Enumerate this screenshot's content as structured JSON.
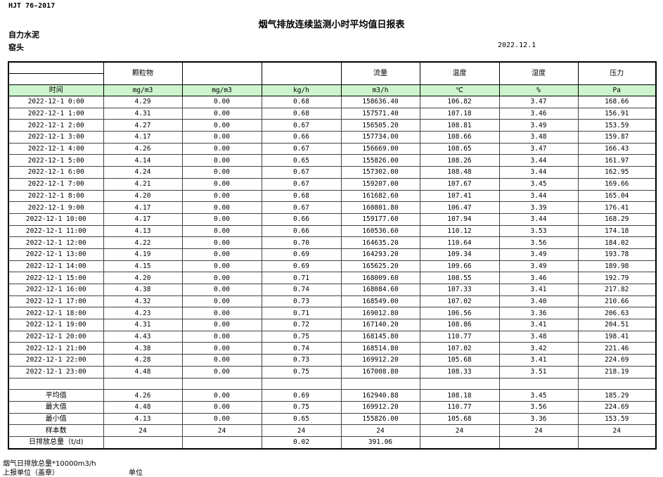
{
  "header": {
    "standard": "HJT  76-2017",
    "title": "烟气排放连续监测小时平均值日报表",
    "company": "自力水泥",
    "unit": "窑头",
    "date": "2022.12.1"
  },
  "columns": [
    "",
    "颗粒物",
    "",
    "",
    "流量",
    "温度",
    "湿度",
    "压力"
  ],
  "units": [
    "时间",
    "mg/m3",
    "mg/m3",
    "kg/h",
    "m3/h",
    "℃",
    "%",
    "Pa"
  ],
  "rows": [
    [
      "2022-12-1 0:00",
      "4.29",
      "0.00",
      "0.68",
      "158636.40",
      "106.82",
      "3.47",
      "168.66"
    ],
    [
      "2022-12-1 1:00",
      "4.31",
      "0.00",
      "0.68",
      "157571.40",
      "107.18",
      "3.46",
      "156.91"
    ],
    [
      "2022-12-1 2:00",
      "4.27",
      "0.00",
      "0.67",
      "156505.20",
      "108.81",
      "3.49",
      "153.59"
    ],
    [
      "2022-12-1 3:00",
      "4.17",
      "0.00",
      "0.66",
      "157734.00",
      "108.66",
      "3.48",
      "159.87"
    ],
    [
      "2022-12-1 4:00",
      "4.26",
      "0.00",
      "0.67",
      "156669.00",
      "108.65",
      "3.47",
      "166.43"
    ],
    [
      "2022-12-1 5:00",
      "4.14",
      "0.00",
      "0.65",
      "155826.00",
      "108.26",
      "3.44",
      "161.97"
    ],
    [
      "2022-12-1 6:00",
      "4.24",
      "0.00",
      "0.67",
      "157302.00",
      "108.48",
      "3.44",
      "162.95"
    ],
    [
      "2022-12-1 7:00",
      "4.21",
      "0.00",
      "0.67",
      "159207.00",
      "107.67",
      "3.45",
      "169.66"
    ],
    [
      "2022-12-1 8:00",
      "4.20",
      "0.00",
      "0.68",
      "161682.60",
      "107.41",
      "3.44",
      "165.04"
    ],
    [
      "2022-12-1 9:00",
      "4.17",
      "0.00",
      "0.67",
      "160801.80",
      "106.47",
      "3.39",
      "176.41"
    ],
    [
      "2022-12-1 10:00",
      "4.17",
      "0.00",
      "0.66",
      "159177.60",
      "107.94",
      "3.44",
      "168.29"
    ],
    [
      "2022-12-1 11:00",
      "4.13",
      "0.00",
      "0.66",
      "160536.60",
      "110.12",
      "3.53",
      "174.18"
    ],
    [
      "2022-12-1 12:00",
      "4.22",
      "0.00",
      "0.70",
      "164635.20",
      "110.64",
      "3.56",
      "184.02"
    ],
    [
      "2022-12-1 13:00",
      "4.19",
      "0.00",
      "0.69",
      "164293.20",
      "109.34",
      "3.49",
      "193.78"
    ],
    [
      "2022-12-1 14:00",
      "4.15",
      "0.00",
      "0.69",
      "165625.20",
      "109.66",
      "3.49",
      "189.98"
    ],
    [
      "2022-12-1 15:00",
      "4.20",
      "0.00",
      "0.71",
      "168009.60",
      "108.55",
      "3.46",
      "192.79"
    ],
    [
      "2022-12-1 16:00",
      "4.38",
      "0.00",
      "0.74",
      "168084.60",
      "107.33",
      "3.41",
      "217.82"
    ],
    [
      "2022-12-1 17:00",
      "4.32",
      "0.00",
      "0.73",
      "168549.00",
      "107.02",
      "3.40",
      "210.66"
    ],
    [
      "2022-12-1 18:00",
      "4.23",
      "0.00",
      "0.71",
      "169012.80",
      "106.56",
      "3.36",
      "206.63"
    ],
    [
      "2022-12-1 19:00",
      "4.31",
      "0.00",
      "0.72",
      "167140.20",
      "108.86",
      "3.41",
      "204.51"
    ],
    [
      "2022-12-1 20:00",
      "4.43",
      "0.00",
      "0.75",
      "168145.80",
      "110.77",
      "3.48",
      "198.41"
    ],
    [
      "2022-12-1 21:00",
      "4.38",
      "0.00",
      "0.74",
      "168514.80",
      "107.02",
      "3.42",
      "221.46"
    ],
    [
      "2022-12-1 22:00",
      "4.28",
      "0.00",
      "0.73",
      "169912.20",
      "105.68",
      "3.41",
      "224.69"
    ],
    [
      "2022-12-1 23:00",
      "4.48",
      "0.00",
      "0.75",
      "167008.80",
      "108.33",
      "3.51",
      "218.19"
    ]
  ],
  "summary": [
    [
      "平均值",
      "4.26",
      "0.00",
      "0.69",
      "162940.88",
      "108.18",
      "3.45",
      "185.29"
    ],
    [
      "最大值",
      "4.48",
      "0.00",
      "0.75",
      "169912.20",
      "110.77",
      "3.56",
      "224.69"
    ],
    [
      "最小值",
      "4.13",
      "0.00",
      "0.65",
      "155826.00",
      "105.68",
      "3.36",
      "153.59"
    ],
    [
      "样本数",
      "24",
      "24",
      "24",
      "24",
      "24",
      "24",
      "24"
    ],
    [
      "日排放总量（t/d)",
      "",
      "",
      "0.02",
      "391.06",
      "",
      "",
      ""
    ]
  ],
  "footer": {
    "note": "烟气日排放总量*10000m3/h",
    "report_unit_label": "上报单位（盖章）",
    "unit_label": "单位"
  }
}
